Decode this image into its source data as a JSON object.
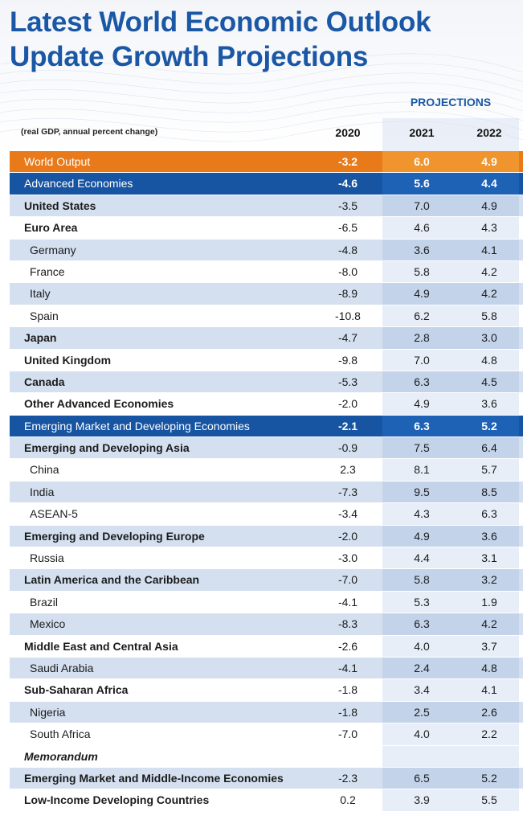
{
  "title_line1": "Latest World Economic Outlook",
  "title_line2": "Update Growth Projections",
  "projections_label": "PROJECTIONS",
  "note": "(real GDP, annual percent change)",
  "colors": {
    "title_blue": "#1a57a5",
    "world_orange": "#e97a1a",
    "group_blue": "#1754a2",
    "band_light": "#d4e0f0"
  },
  "chart_data": {
    "type": "table",
    "title": "Latest World Economic Outlook Update Growth Projections",
    "columns": [
      "2020",
      "2021",
      "2022"
    ],
    "projection_columns": [
      "2021",
      "2022"
    ],
    "rows": [
      {
        "name": "World Output",
        "style": "world",
        "values": [
          "-3.2",
          "6.0",
          "4.9"
        ]
      },
      {
        "name": "Advanced Economies",
        "style": "group",
        "values": [
          "-4.6",
          "5.6",
          "4.4"
        ]
      },
      {
        "name": "United States",
        "style": "band",
        "level": 0,
        "values": [
          "-3.5",
          "7.0",
          "4.9"
        ]
      },
      {
        "name": "Euro Area",
        "style": "plain",
        "level": 0,
        "values": [
          "-6.5",
          "4.6",
          "4.3"
        ]
      },
      {
        "name": "Germany",
        "style": "band",
        "level": 1,
        "values": [
          "-4.8",
          "3.6",
          "4.1"
        ]
      },
      {
        "name": "France",
        "style": "plain",
        "level": 1,
        "values": [
          "-8.0",
          "5.8",
          "4.2"
        ]
      },
      {
        "name": "Italy",
        "style": "band",
        "level": 1,
        "values": [
          "-8.9",
          "4.9",
          "4.2"
        ]
      },
      {
        "name": "Spain",
        "style": "plain",
        "level": 1,
        "values": [
          "-10.8",
          "6.2",
          "5.8"
        ]
      },
      {
        "name": "Japan",
        "style": "band",
        "level": 0,
        "values": [
          "-4.7",
          "2.8",
          "3.0"
        ]
      },
      {
        "name": "United Kingdom",
        "style": "plain",
        "level": 0,
        "values": [
          "-9.8",
          "7.0",
          "4.8"
        ]
      },
      {
        "name": "Canada",
        "style": "band",
        "level": 0,
        "values": [
          "-5.3",
          "6.3",
          "4.5"
        ]
      },
      {
        "name": "Other Advanced Economies",
        "style": "plain",
        "level": 0,
        "values": [
          "-2.0",
          "4.9",
          "3.6"
        ]
      },
      {
        "name": "Emerging Market and Developing Economies",
        "style": "group",
        "values": [
          "-2.1",
          "6.3",
          "5.2"
        ]
      },
      {
        "name": "Emerging and Developing Asia",
        "style": "band",
        "level": 0,
        "values": [
          "-0.9",
          "7.5",
          "6.4"
        ]
      },
      {
        "name": "China",
        "style": "plain",
        "level": 1,
        "values": [
          "2.3",
          "8.1",
          "5.7"
        ]
      },
      {
        "name": "India",
        "style": "band",
        "level": 1,
        "values": [
          "-7.3",
          "9.5",
          "8.5"
        ]
      },
      {
        "name": "ASEAN-5",
        "style": "plain",
        "level": 1,
        "values": [
          "-3.4",
          "4.3",
          "6.3"
        ]
      },
      {
        "name": "Emerging and Developing Europe",
        "style": "band",
        "level": 0,
        "values": [
          "-2.0",
          "4.9",
          "3.6"
        ]
      },
      {
        "name": "Russia",
        "style": "plain",
        "level": 1,
        "values": [
          "-3.0",
          "4.4",
          "3.1"
        ]
      },
      {
        "name": "Latin America and the Caribbean",
        "style": "band",
        "level": 0,
        "values": [
          "-7.0",
          "5.8",
          "3.2"
        ]
      },
      {
        "name": "Brazil",
        "style": "plain",
        "level": 1,
        "values": [
          "-4.1",
          "5.3",
          "1.9"
        ]
      },
      {
        "name": "Mexico",
        "style": "band",
        "level": 1,
        "values": [
          "-8.3",
          "6.3",
          "4.2"
        ]
      },
      {
        "name": "Middle East and Central Asia",
        "style": "plain",
        "level": 0,
        "values": [
          "-2.6",
          "4.0",
          "3.7"
        ]
      },
      {
        "name": "Saudi Arabia",
        "style": "band",
        "level": 1,
        "values": [
          "-4.1",
          "2.4",
          "4.8"
        ]
      },
      {
        "name": "Sub-Saharan Africa",
        "style": "plain",
        "level": 0,
        "values": [
          "-1.8",
          "3.4",
          "4.1"
        ]
      },
      {
        "name": "Nigeria",
        "style": "band",
        "level": 1,
        "values": [
          "-1.8",
          "2.5",
          "2.6"
        ]
      },
      {
        "name": "South Africa",
        "style": "plain",
        "level": 1,
        "values": [
          "-7.0",
          "4.0",
          "2.2"
        ]
      },
      {
        "name": "Memorandum",
        "style": "memo",
        "values": [
          "",
          "",
          ""
        ]
      },
      {
        "name": "Emerging Market and Middle-Income Economies",
        "style": "band",
        "level": 0,
        "values": [
          "-2.3",
          "6.5",
          "5.2"
        ]
      },
      {
        "name": "Low-Income Developing Countries",
        "style": "plain",
        "level": 0,
        "values": [
          "0.2",
          "3.9",
          "5.5"
        ]
      }
    ]
  }
}
